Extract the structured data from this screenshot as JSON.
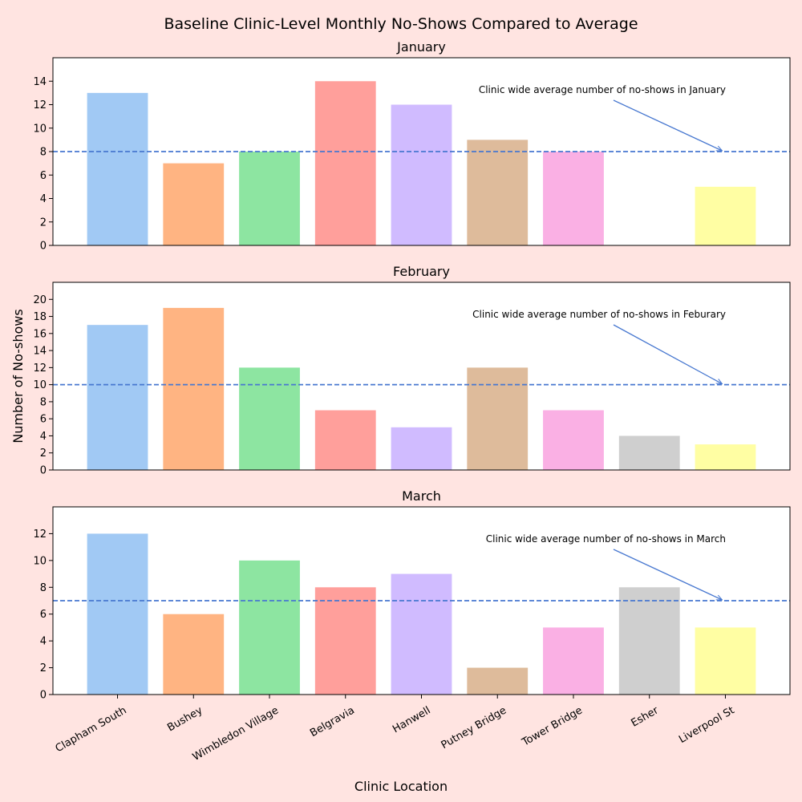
{
  "title": "Baseline Clinic-Level Monthly No-Shows Compared to Average",
  "ylabel": "Number of No-shows",
  "xlabel": "Clinic Location",
  "colors": [
    "#A1C9F4",
    "#FFB482",
    "#8DE5A1",
    "#FF9F9B",
    "#D0BBFF",
    "#DEBB9B",
    "#FAB0E4",
    "#CFCFCF",
    "#FFFEA3"
  ],
  "average_line_color": "#4878D0",
  "chart_data": [
    {
      "type": "bar",
      "title": "January",
      "categories": [
        "Clapham South",
        "Bushey",
        "Wimbledon Village",
        "Belgravia",
        "Hanwell",
        "Putney Bridge",
        "Tower Bridge",
        "Esher",
        "Liverpool St"
      ],
      "values": [
        13,
        7,
        8,
        14,
        12,
        9,
        8,
        0,
        5
      ],
      "average": 8,
      "annotation": "Clinic wide average number of no-shows in January",
      "ylim": [
        0,
        16
      ],
      "yticks": [
        0,
        2,
        4,
        6,
        8,
        10,
        12,
        14
      ],
      "xlabel": "",
      "ylabel": "Number of No-shows"
    },
    {
      "type": "bar",
      "title": "February",
      "categories": [
        "Clapham South",
        "Bushey",
        "Wimbledon Village",
        "Belgravia",
        "Hanwell",
        "Putney Bridge",
        "Tower Bridge",
        "Esher",
        "Liverpool St"
      ],
      "values": [
        17,
        19,
        12,
        7,
        5,
        12,
        7,
        4,
        3
      ],
      "average": 10,
      "annotation": "Clinic wide average number of no-shows in Feburary",
      "ylim": [
        0,
        22
      ],
      "yticks": [
        0,
        2,
        4,
        6,
        8,
        10,
        12,
        14,
        16,
        18,
        20
      ],
      "xlabel": "",
      "ylabel": "Number of No-shows"
    },
    {
      "type": "bar",
      "title": "March",
      "categories": [
        "Clapham South",
        "Bushey",
        "Wimbledon Village",
        "Belgravia",
        "Hanwell",
        "Putney Bridge",
        "Tower Bridge",
        "Esher",
        "Liverpool St"
      ],
      "values": [
        12,
        6,
        10,
        8,
        9,
        2,
        5,
        8,
        5
      ],
      "average": 7,
      "annotation": "Clinic wide average number of no-shows in March",
      "ylim": [
        0,
        14
      ],
      "yticks": [
        0,
        2,
        4,
        6,
        8,
        10,
        12
      ],
      "xlabel": "Clinic Location",
      "ylabel": "Number of No-shows"
    }
  ]
}
